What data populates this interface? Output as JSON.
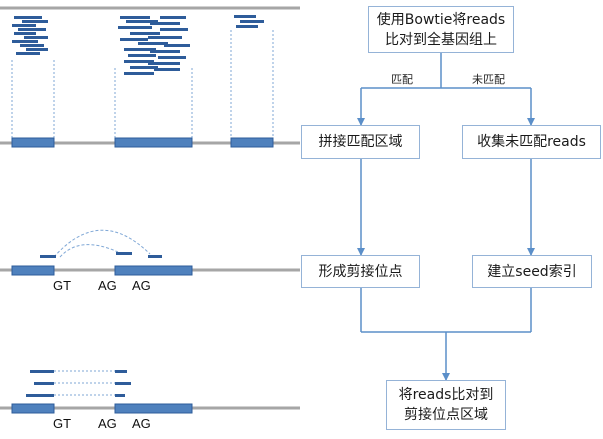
{
  "flowchart": {
    "nodes": {
      "map_genome": "使用Bowtie将reads\n比对到全基因组上",
      "splice_region": "拼接匹配区域",
      "collect_unmapped": "收集未匹配reads",
      "form_junctions": "形成剪接位点",
      "build_seed_index": "建立seed索引",
      "map_to_junctions": "将reads比对到\n剪接位点区域"
    },
    "edges": {
      "matched": "匹配",
      "unmatched": "未匹配"
    }
  },
  "illustration": {
    "splice_sites_middle": [
      "GT",
      "AG",
      "AG"
    ],
    "splice_sites_bottom": [
      "GT",
      "AG",
      "AG"
    ]
  },
  "colors": {
    "exon_fill": "#4f81bd",
    "read_fill": "#2e5c9a",
    "genome_line": "#a6a6a6",
    "connector": "#5b8fc9",
    "box_border": "#95b3d7"
  }
}
